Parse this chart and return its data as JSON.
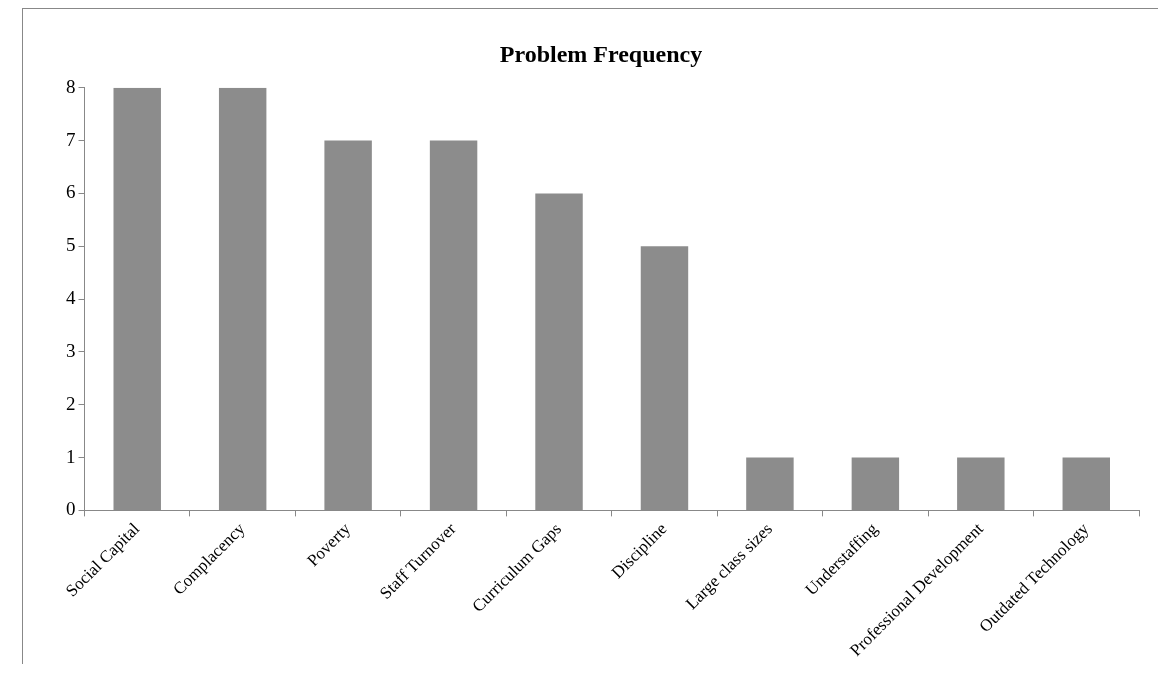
{
  "chart_data": {
    "type": "bar",
    "title": "Problem Frequency",
    "categories": [
      "Social Capital",
      "Complacency",
      "Poverty",
      "Staff Turnover",
      "Curriculum Gaps",
      "Discipline",
      "Large class sizes",
      "Understaffing",
      "Professional Development",
      "Outdated Technology"
    ],
    "values": [
      8,
      8,
      7,
      7,
      6,
      5,
      1,
      1,
      1,
      1
    ],
    "color": "#8c8c8c",
    "ylim": [
      0,
      8
    ],
    "yticks": [
      0,
      1,
      2,
      3,
      4,
      5,
      6,
      7,
      8
    ],
    "grid": false,
    "legend": false
  }
}
